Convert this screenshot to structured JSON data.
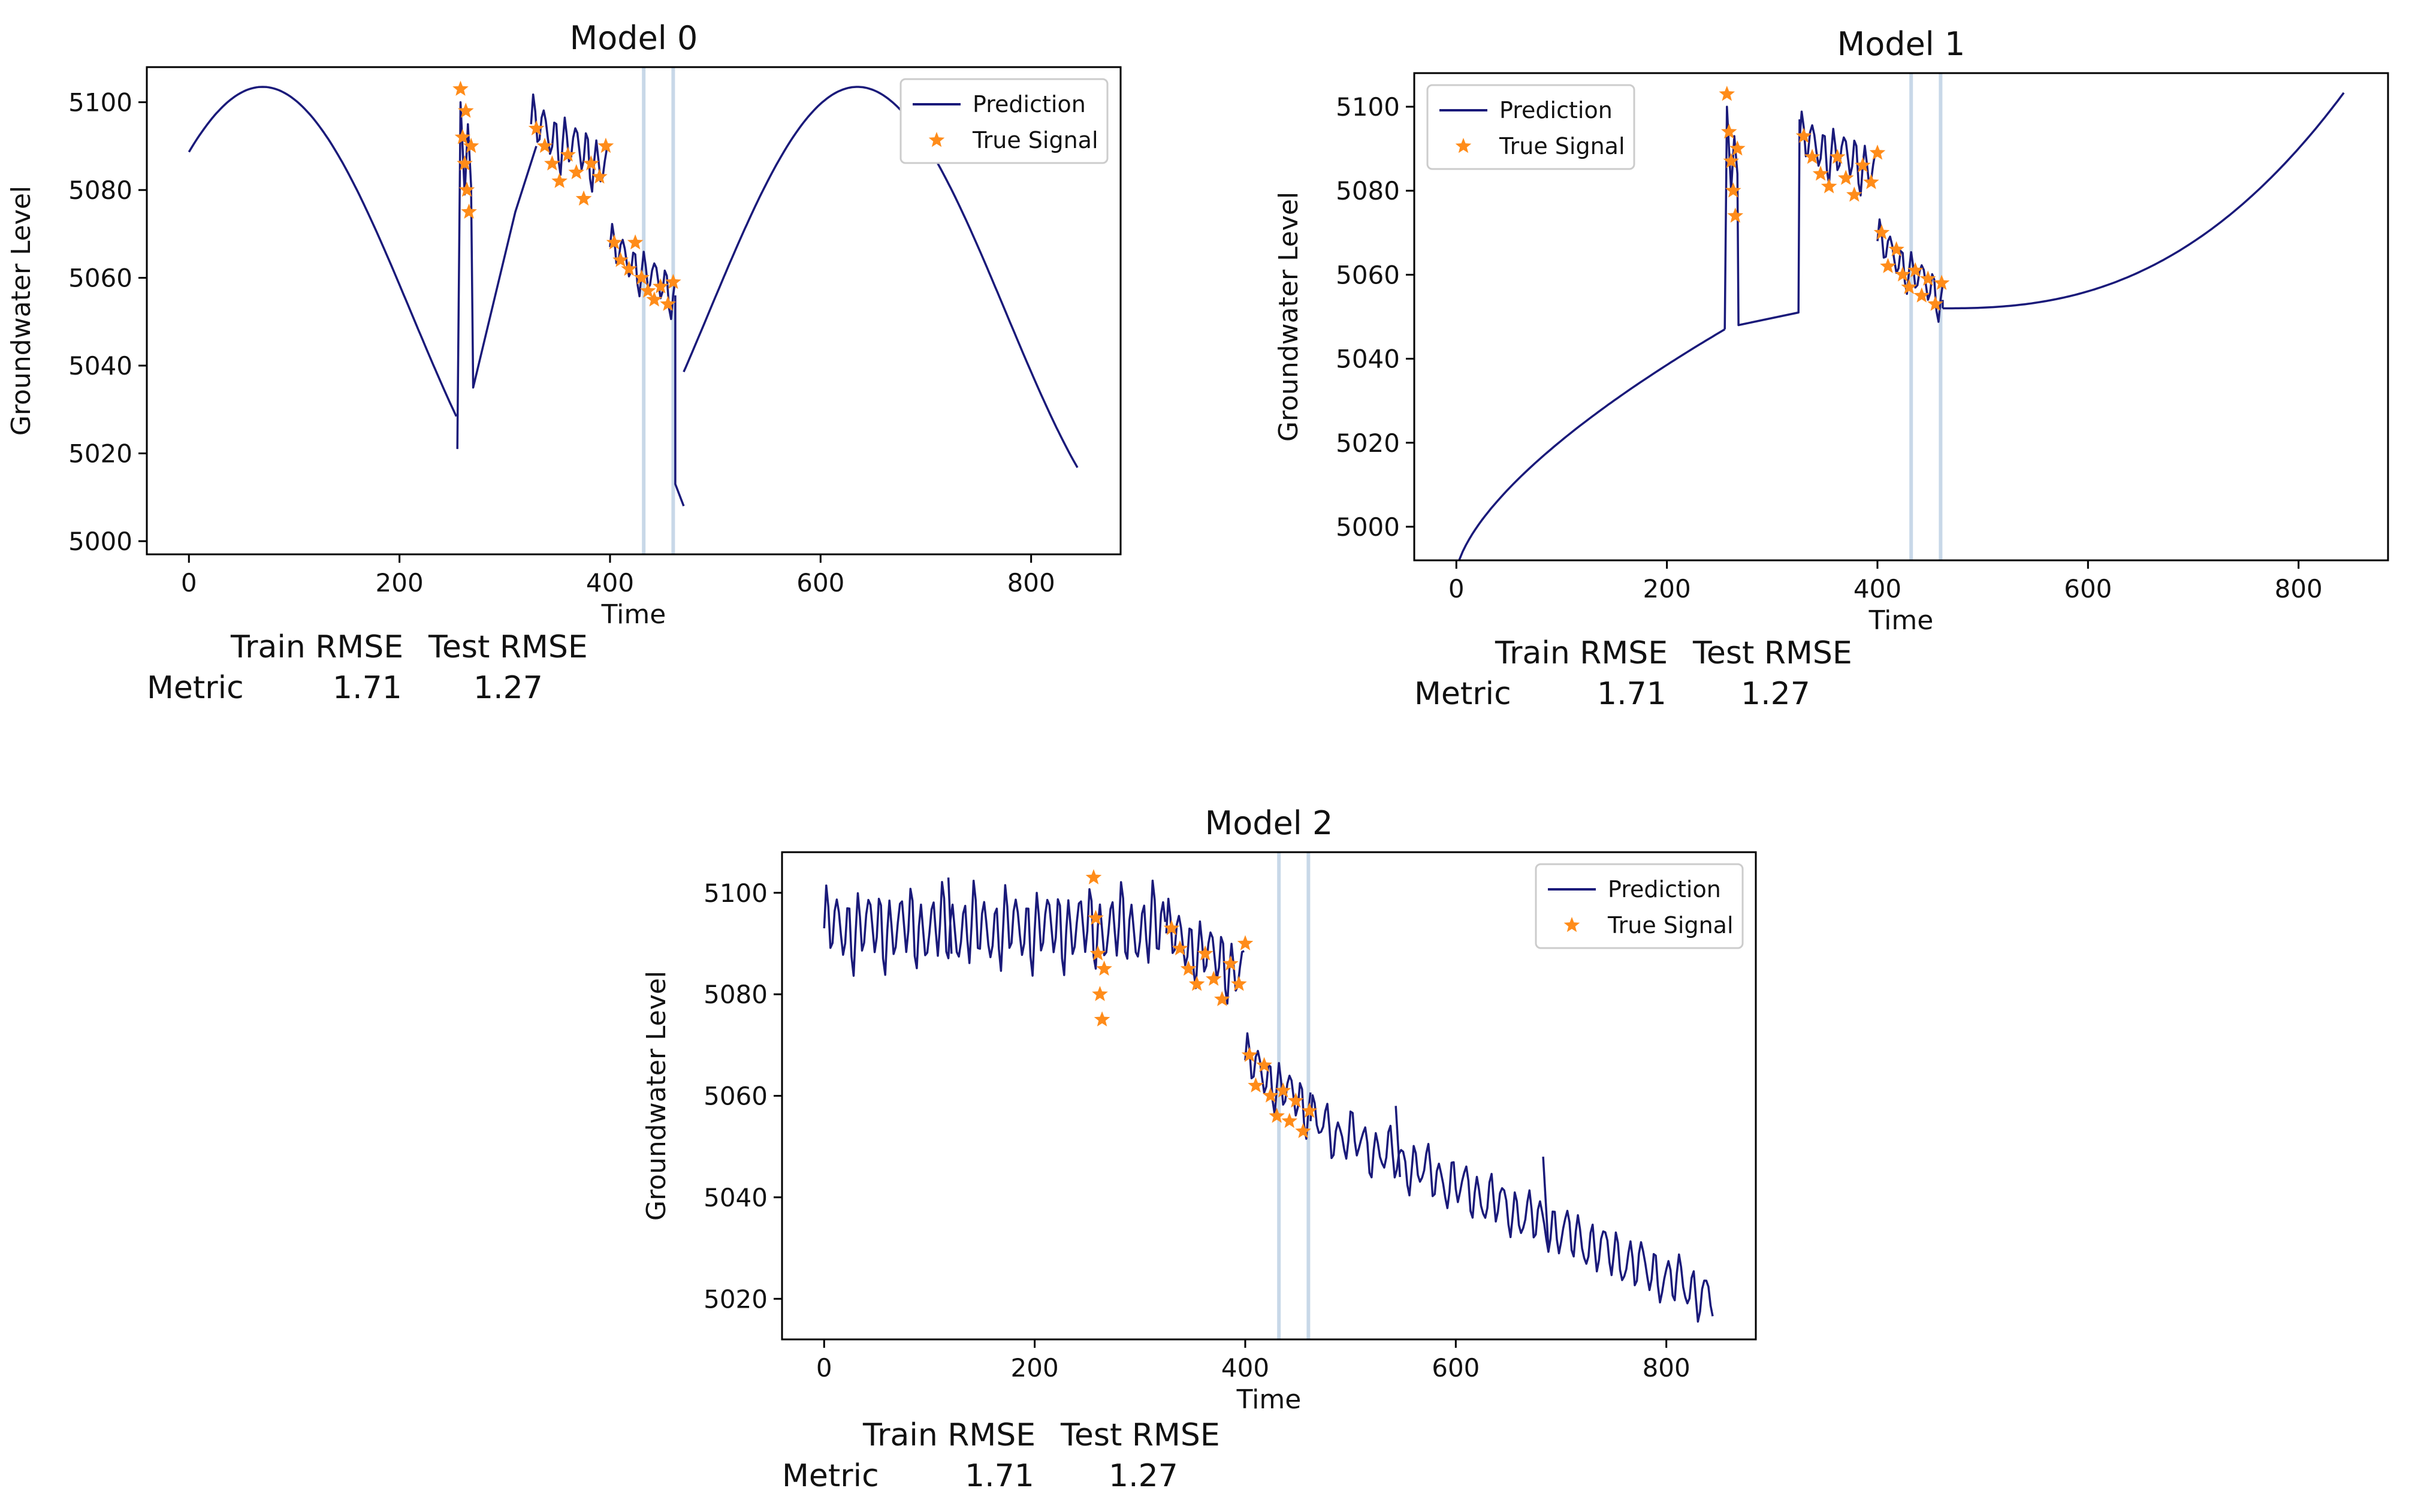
{
  "colors": {
    "prediction": "#1a1a7a",
    "true_signal": "#ff8c1a",
    "vline": "#c8d8e8",
    "axis": "#000000"
  },
  "legend": {
    "prediction_label": "Prediction",
    "true_signal_label": "True Signal"
  },
  "chart_data": [
    {
      "type": "line",
      "title": "Model 0",
      "xlabel": "Time",
      "ylabel": "Groundwater Level",
      "xlim": [
        -40,
        885
      ],
      "ylim": [
        4997,
        5108
      ],
      "xticks": [
        0,
        200,
        400,
        600,
        800
      ],
      "yticks": [
        5000,
        5020,
        5040,
        5060,
        5080,
        5100
      ],
      "legend_position": "top-right",
      "vlines": [
        432,
        460
      ],
      "prediction": {
        "segments": [
          {
            "kind": "sine",
            "x_start": 0,
            "x_end": 255,
            "center": 5052,
            "amplitude": 51.5,
            "period": 565,
            "peak_x": 70
          },
          {
            "kind": "points",
            "points": [
              [
                255,
                5021
              ],
              [
                258,
                5100
              ],
              [
                262,
                5079
              ],
              [
                265,
                5095
              ],
              [
                268,
                5081
              ],
              [
                270,
                5035
              ],
              [
                285,
                5050
              ],
              [
                310,
                5075
              ],
              [
                330,
                5090
              ]
            ]
          },
          {
            "kind": "oscillating",
            "x_start": 325,
            "x_end": 400,
            "from": 5095,
            "to": 5085,
            "amp": 5,
            "period": 10
          },
          {
            "kind": "oscillating",
            "x_start": 400,
            "x_end": 462,
            "from": 5067,
            "to": 5056,
            "amp": 4,
            "period": 10
          },
          {
            "kind": "points",
            "points": [
              [
                462,
                5056
              ],
              [
                462,
                5013
              ],
              [
                470,
                5008
              ]
            ]
          },
          {
            "kind": "sine",
            "x_start": 470,
            "x_end": 845,
            "center": 5052,
            "amplitude": 51.5,
            "period": 565,
            "peak_x": 635
          }
        ]
      },
      "true_signal": [
        [
          258,
          5103
        ],
        [
          260,
          5092
        ],
        [
          262,
          5086
        ],
        [
          264,
          5080
        ],
        [
          266,
          5075
        ],
        [
          268,
          5090
        ],
        [
          263,
          5098
        ],
        [
          330,
          5094
        ],
        [
          338,
          5090
        ],
        [
          345,
          5086
        ],
        [
          352,
          5082
        ],
        [
          360,
          5088
        ],
        [
          368,
          5084
        ],
        [
          375,
          5078
        ],
        [
          382,
          5086
        ],
        [
          390,
          5083
        ],
        [
          396,
          5090
        ],
        [
          404,
          5068
        ],
        [
          410,
          5064
        ],
        [
          418,
          5062
        ],
        [
          424,
          5068
        ],
        [
          430,
          5060
        ],
        [
          436,
          5057
        ],
        [
          442,
          5055
        ],
        [
          448,
          5058
        ],
        [
          455,
          5054
        ],
        [
          460,
          5059
        ]
      ],
      "metric_headers": [
        "Train RMSE",
        "Test RMSE"
      ],
      "metric_row_label": "Metric",
      "metric_values": [
        "1.71",
        "1.27"
      ]
    },
    {
      "type": "line",
      "title": "Model 1",
      "xlabel": "Time",
      "ylabel": "Groundwater Level",
      "xlim": [
        -40,
        885
      ],
      "ylim": [
        4992,
        5108
      ],
      "xticks": [
        0,
        200,
        400,
        600,
        800
      ],
      "yticks": [
        5000,
        5020,
        5040,
        5060,
        5080,
        5100
      ],
      "legend_position": "top-left",
      "vlines": [
        432,
        460
      ],
      "prediction": {
        "segments": [
          {
            "kind": "power",
            "x_start": 0,
            "x_end": 255,
            "y_start": 4989,
            "y_end": 5047,
            "exp": 0.65
          },
          {
            "kind": "points",
            "points": [
              [
                255,
                5047
              ],
              [
                257,
                5100
              ],
              [
                261,
                5080
              ],
              [
                264,
                5093
              ],
              [
                267,
                5084
              ],
              [
                268,
                5048
              ],
              [
                325,
                5051
              ],
              [
                326,
                5097
              ]
            ]
          },
          {
            "kind": "oscillating",
            "x_start": 326,
            "x_end": 400,
            "from": 5092,
            "to": 5085,
            "amp": 5,
            "period": 10
          },
          {
            "kind": "oscillating",
            "x_start": 400,
            "x_end": 462,
            "from": 5068,
            "to": 5054,
            "amp": 4,
            "period": 10
          },
          {
            "kind": "points",
            "points": [
              [
                462,
                5054
              ],
              [
                462,
                5052
              ]
            ]
          },
          {
            "kind": "power",
            "x_start": 462,
            "x_end": 845,
            "y_start": 5052,
            "y_end": 5104,
            "exp": 2.5
          }
        ]
      },
      "true_signal": [
        [
          257,
          5103
        ],
        [
          259,
          5094
        ],
        [
          261,
          5087
        ],
        [
          263,
          5080
        ],
        [
          265,
          5074
        ],
        [
          267,
          5090
        ],
        [
          330,
          5093
        ],
        [
          338,
          5088
        ],
        [
          346,
          5084
        ],
        [
          354,
          5081
        ],
        [
          362,
          5088
        ],
        [
          370,
          5083
        ],
        [
          378,
          5079
        ],
        [
          386,
          5086
        ],
        [
          394,
          5082
        ],
        [
          400,
          5089
        ],
        [
          404,
          5070
        ],
        [
          410,
          5062
        ],
        [
          418,
          5066
        ],
        [
          424,
          5060
        ],
        [
          430,
          5057
        ],
        [
          436,
          5061
        ],
        [
          442,
          5055
        ],
        [
          448,
          5059
        ],
        [
          455,
          5053
        ],
        [
          461,
          5058
        ]
      ],
      "metric_headers": [
        "Train RMSE",
        "Test RMSE"
      ],
      "metric_row_label": "Metric",
      "metric_values": [
        "1.71",
        "1.27"
      ]
    },
    {
      "type": "line",
      "title": "Model 2",
      "xlabel": "Time",
      "ylabel": "Groundwater Level",
      "xlim": [
        -40,
        885
      ],
      "ylim": [
        5012,
        5108
      ],
      "xticks": [
        0,
        200,
        400,
        600,
        800
      ],
      "yticks": [
        5020,
        5040,
        5060,
        5080,
        5100
      ],
      "legend_position": "top-right",
      "vlines": [
        432,
        460
      ],
      "prediction": {
        "segments": [
          {
            "kind": "oscillating",
            "x_start": 0,
            "x_end": 325,
            "from": 5093,
            "to": 5093,
            "amp": 6,
            "period": 10
          },
          {
            "kind": "oscillating",
            "x_start": 325,
            "x_end": 400,
            "from": 5092,
            "to": 5084,
            "amp": 5,
            "period": 10
          },
          {
            "kind": "oscillating",
            "x_start": 400,
            "x_end": 462,
            "from": 5067,
            "to": 5057,
            "amp": 4,
            "period": 10
          },
          {
            "kind": "oscillating",
            "x_start": 462,
            "x_end": 845,
            "from": 5055,
            "to": 5020,
            "amp": 4,
            "period": 12
          },
          {
            "kind": "points",
            "points": [
              [
                118,
                5103
              ],
              [
                121,
                5088
              ]
            ]
          },
          {
            "kind": "points",
            "points": [
              [
                543,
                5058
              ],
              [
                547,
                5044
              ]
            ]
          },
          {
            "kind": "points",
            "points": [
              [
                683,
                5048
              ],
              [
                688,
                5030
              ]
            ]
          }
        ]
      },
      "true_signal": [
        [
          256,
          5103
        ],
        [
          258,
          5095
        ],
        [
          260,
          5088
        ],
        [
          262,
          5080
        ],
        [
          264,
          5075
        ],
        [
          266,
          5085
        ],
        [
          330,
          5093
        ],
        [
          338,
          5089
        ],
        [
          346,
          5085
        ],
        [
          354,
          5082
        ],
        [
          362,
          5088
        ],
        [
          370,
          5083
        ],
        [
          378,
          5079
        ],
        [
          386,
          5086
        ],
        [
          394,
          5082
        ],
        [
          400,
          5090
        ],
        [
          404,
          5068
        ],
        [
          410,
          5062
        ],
        [
          418,
          5066
        ],
        [
          424,
          5060
        ],
        [
          430,
          5056
        ],
        [
          436,
          5061
        ],
        [
          442,
          5055
        ],
        [
          448,
          5059
        ],
        [
          455,
          5053
        ],
        [
          461,
          5057
        ]
      ],
      "metric_headers": [
        "Train RMSE",
        "Test RMSE"
      ],
      "metric_row_label": "Metric",
      "metric_values": [
        "1.71",
        "1.27"
      ]
    }
  ]
}
